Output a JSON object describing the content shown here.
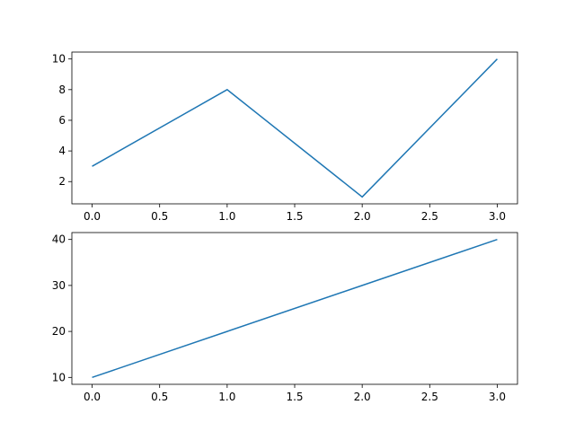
{
  "chart_data": [
    {
      "type": "line",
      "x": [
        0,
        1,
        2,
        3
      ],
      "values": [
        3,
        8,
        1,
        10
      ],
      "color": "#1f77b4",
      "xlim": [
        -0.15,
        3.15
      ],
      "ylim": [
        0.55,
        10.45
      ],
      "xticks": [
        {
          "value": 0,
          "label": "0.0"
        },
        0.5,
        {
          "value": 1,
          "label": "1.0"
        },
        1.5,
        {
          "value": 2,
          "label": "2.0"
        },
        2.5,
        {
          "value": 3,
          "label": "3.0"
        }
      ],
      "yticks": [
        2,
        4,
        6,
        8,
        10
      ]
    },
    {
      "type": "line",
      "x": [
        0,
        1,
        2,
        3
      ],
      "values": [
        10,
        20,
        30,
        40
      ],
      "color": "#1f77b4",
      "xlim": [
        -0.15,
        3.15
      ],
      "ylim": [
        8.5,
        41.5
      ],
      "xticks": [
        {
          "value": 0,
          "label": "0.0"
        },
        0.5,
        {
          "value": 1,
          "label": "1.0"
        },
        1.5,
        {
          "value": 2,
          "label": "2.0"
        },
        2.5,
        {
          "value": 3,
          "label": "3.0"
        }
      ],
      "yticks": [
        10,
        20,
        30,
        40
      ]
    }
  ]
}
